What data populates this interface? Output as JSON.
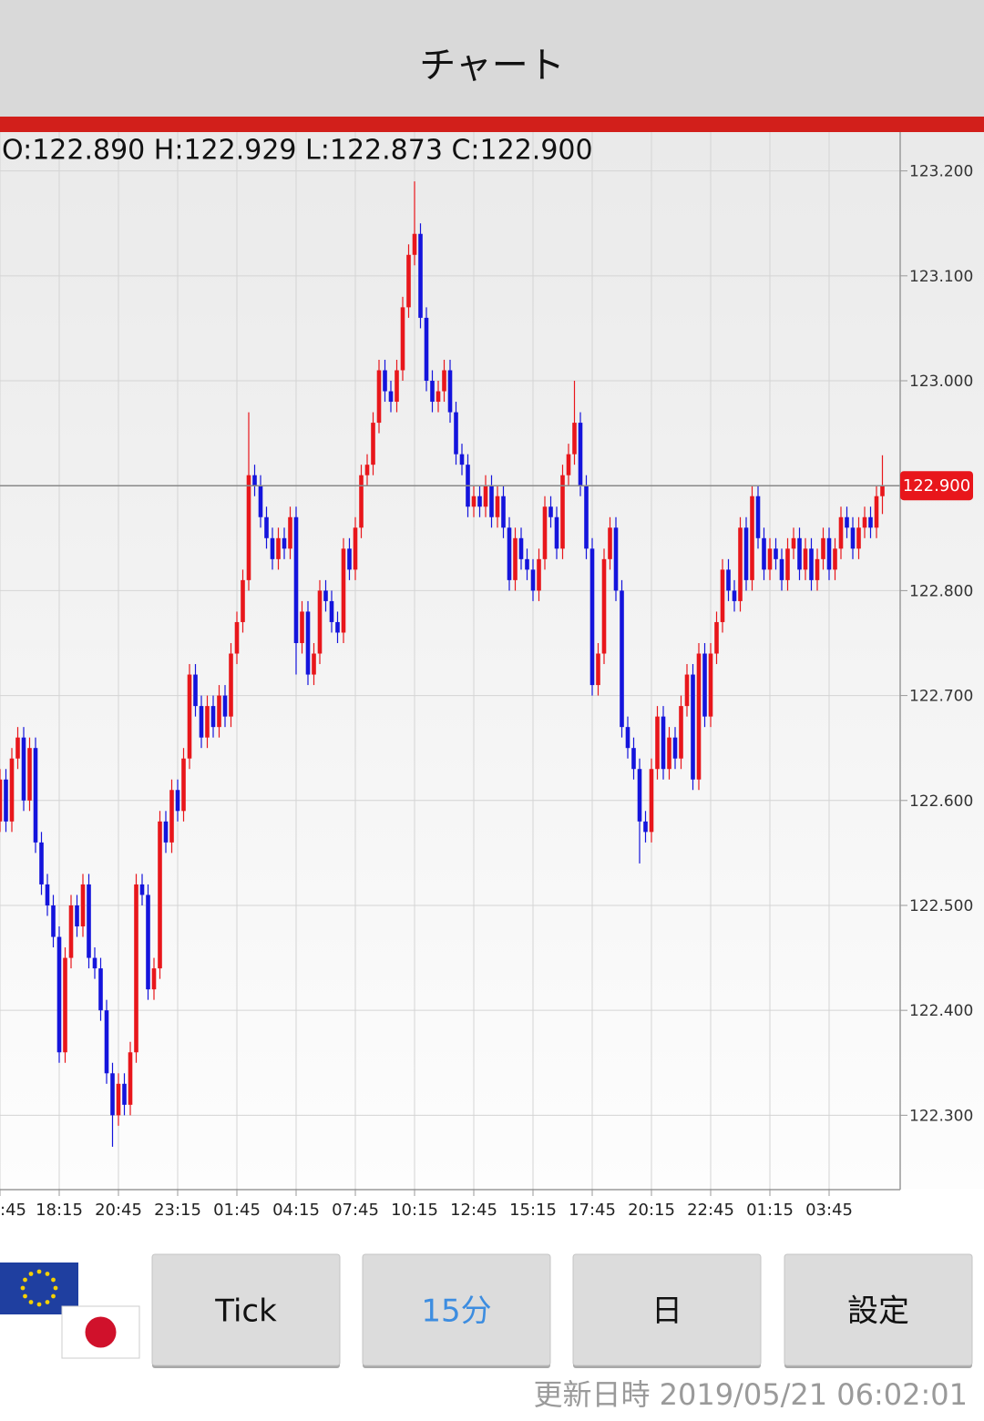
{
  "header": {
    "title": "チャート"
  },
  "chart_data": {
    "type": "candlestick",
    "ohlc_text": "O:122.890 H:122.929 L:122.873 C:122.900",
    "categories": [
      ":45",
      null,
      null,
      null,
      null,
      null,
      null,
      null,
      null,
      null,
      "18:15",
      null,
      null,
      null,
      null,
      null,
      null,
      null,
      null,
      null,
      "20:45",
      null,
      null,
      null,
      null,
      null,
      null,
      null,
      null,
      null,
      "23:15",
      null,
      null,
      null,
      null,
      null,
      null,
      null,
      null,
      null,
      "01:45",
      null,
      null,
      null,
      null,
      null,
      null,
      null,
      null,
      null,
      "04:15",
      null,
      null,
      null,
      null,
      null,
      null,
      null,
      null,
      null,
      "07:45",
      null,
      null,
      null,
      null,
      null,
      null,
      null,
      null,
      null,
      "10:15",
      null,
      null,
      null,
      null,
      null,
      null,
      null,
      null,
      null,
      "12:45",
      null,
      null,
      null,
      null,
      null,
      null,
      null,
      null,
      null,
      "15:15",
      null,
      null,
      null,
      null,
      null,
      null,
      null,
      null,
      null,
      "17:45",
      null,
      null,
      null,
      null,
      null,
      null,
      null,
      null,
      null,
      "20:15",
      null,
      null,
      null,
      null,
      null,
      null,
      null,
      null,
      null,
      "22:45",
      null,
      null,
      null,
      null,
      null,
      null,
      null,
      null,
      null,
      "01:15",
      null,
      null,
      null,
      null,
      null,
      null,
      null,
      null,
      null,
      "03:45",
      null,
      null,
      null,
      null,
      null,
      null,
      null,
      null,
      null
    ],
    "open": [
      122.58,
      122.62,
      122.58,
      122.64,
      122.66,
      122.6,
      122.65,
      122.56,
      122.52,
      122.5,
      122.47,
      122.36,
      122.45,
      122.5,
      122.48,
      122.52,
      122.45,
      122.44,
      122.4,
      122.34,
      122.3,
      122.33,
      122.31,
      122.36,
      122.52,
      122.51,
      122.42,
      122.44,
      122.58,
      122.56,
      122.61,
      122.59,
      122.64,
      122.72,
      122.69,
      122.66,
      122.69,
      122.67,
      122.7,
      122.68,
      122.74,
      122.77,
      122.81,
      122.91,
      122.9,
      122.87,
      122.85,
      122.83,
      122.85,
      122.84,
      122.87,
      122.75,
      122.78,
      122.72,
      122.74,
      122.8,
      122.79,
      122.77,
      122.76,
      122.84,
      122.82,
      122.86,
      122.91,
      122.92,
      122.96,
      123.01,
      122.99,
      122.98,
      123.01,
      123.07,
      123.12,
      123.14,
      123.06,
      123.0,
      122.98,
      122.99,
      123.01,
      122.97,
      122.93,
      122.92,
      122.88,
      122.89,
      122.88,
      122.9,
      122.87,
      122.89,
      122.86,
      122.81,
      122.85,
      122.83,
      122.82,
      122.8,
      122.83,
      122.88,
      122.87,
      122.84,
      122.91,
      122.93,
      122.96,
      122.9,
      122.84,
      122.71,
      122.74,
      122.83,
      122.86,
      122.8,
      122.67,
      122.65,
      122.63,
      122.58,
      122.57,
      122.63,
      122.68,
      122.63,
      122.66,
      122.64,
      122.69,
      122.72,
      122.62,
      122.74,
      122.68,
      122.74,
      122.77,
      122.82,
      122.8,
      122.79,
      122.86,
      122.81,
      122.89,
      122.85,
      122.82,
      122.84,
      122.83,
      122.81,
      122.84,
      122.85,
      122.82,
      122.84,
      122.81,
      122.83,
      122.85,
      122.82,
      122.84,
      122.87,
      122.86,
      122.84,
      122.86,
      122.87,
      122.86,
      122.89
    ],
    "high": [
      122.63,
      122.63,
      122.65,
      122.67,
      122.67,
      122.66,
      122.66,
      122.57,
      122.53,
      122.51,
      122.48,
      122.46,
      122.51,
      122.51,
      122.53,
      122.53,
      122.46,
      122.45,
      122.41,
      122.35,
      122.34,
      122.34,
      122.37,
      122.53,
      122.53,
      122.52,
      122.45,
      122.59,
      122.59,
      122.62,
      122.62,
      122.65,
      122.73,
      122.73,
      122.7,
      122.7,
      122.7,
      122.71,
      122.71,
      122.75,
      122.78,
      122.82,
      122.97,
      122.92,
      122.91,
      122.88,
      122.86,
      122.86,
      122.86,
      122.88,
      122.88,
      122.79,
      122.79,
      122.75,
      122.81,
      122.81,
      122.8,
      122.78,
      122.85,
      122.85,
      122.87,
      122.92,
      122.93,
      122.97,
      123.02,
      123.02,
      123.0,
      123.02,
      123.08,
      123.13,
      123.19,
      123.15,
      123.07,
      123.01,
      123.0,
      123.02,
      123.02,
      122.98,
      122.94,
      122.93,
      122.9,
      122.9,
      122.91,
      122.91,
      122.9,
      122.9,
      122.87,
      122.86,
      122.86,
      122.84,
      122.83,
      122.84,
      122.89,
      122.89,
      122.88,
      122.92,
      122.94,
      123.0,
      122.97,
      122.91,
      122.85,
      122.75,
      122.84,
      122.87,
      122.87,
      122.81,
      122.68,
      122.66,
      122.64,
      122.59,
      122.64,
      122.69,
      122.69,
      122.67,
      122.67,
      122.7,
      122.73,
      122.73,
      122.75,
      122.75,
      122.75,
      122.78,
      122.83,
      122.83,
      122.81,
      122.87,
      122.87,
      122.9,
      122.9,
      122.86,
      122.85,
      122.85,
      122.84,
      122.85,
      122.86,
      122.86,
      122.85,
      122.85,
      122.84,
      122.86,
      122.86,
      122.85,
      122.88,
      122.88,
      122.87,
      122.87,
      122.88,
      122.88,
      122.9,
      122.929
    ],
    "low": [
      122.57,
      122.57,
      122.57,
      122.63,
      122.59,
      122.59,
      122.55,
      122.51,
      122.49,
      122.46,
      122.35,
      122.35,
      122.44,
      122.47,
      122.47,
      122.44,
      122.43,
      122.39,
      122.33,
      122.27,
      122.29,
      122.3,
      122.3,
      122.35,
      122.5,
      122.41,
      122.41,
      122.43,
      122.55,
      122.55,
      122.58,
      122.58,
      122.63,
      122.68,
      122.65,
      122.65,
      122.66,
      122.66,
      122.67,
      122.67,
      122.73,
      122.76,
      122.8,
      122.89,
      122.86,
      122.84,
      122.82,
      122.82,
      122.83,
      122.83,
      122.72,
      122.74,
      122.71,
      122.71,
      122.73,
      122.78,
      122.76,
      122.75,
      122.75,
      122.81,
      122.81,
      122.85,
      122.9,
      122.91,
      122.95,
      122.98,
      122.97,
      122.97,
      123.0,
      123.06,
      123.11,
      123.05,
      122.99,
      122.97,
      122.97,
      122.98,
      122.96,
      122.92,
      122.91,
      122.87,
      122.87,
      122.87,
      122.87,
      122.86,
      122.86,
      122.85,
      122.8,
      122.8,
      122.82,
      122.81,
      122.79,
      122.79,
      122.82,
      122.86,
      122.83,
      122.83,
      122.9,
      122.92,
      122.89,
      122.83,
      122.7,
      122.7,
      122.73,
      122.82,
      122.79,
      122.66,
      122.64,
      122.62,
      122.54,
      122.56,
      122.56,
      122.62,
      122.62,
      122.62,
      122.63,
      122.63,
      122.68,
      122.61,
      122.61,
      122.67,
      122.67,
      122.73,
      122.76,
      122.79,
      122.78,
      122.78,
      122.8,
      122.8,
      122.84,
      122.81,
      122.81,
      122.82,
      122.8,
      122.8,
      122.83,
      122.81,
      122.81,
      122.8,
      122.8,
      122.82,
      122.81,
      122.81,
      122.83,
      122.85,
      122.83,
      122.83,
      122.85,
      122.85,
      122.85,
      122.873
    ],
    "close": [
      122.62,
      122.58,
      122.64,
      122.66,
      122.6,
      122.65,
      122.56,
      122.52,
      122.5,
      122.47,
      122.36,
      122.45,
      122.5,
      122.48,
      122.52,
      122.45,
      122.44,
      122.4,
      122.34,
      122.3,
      122.33,
      122.31,
      122.36,
      122.52,
      122.51,
      122.42,
      122.44,
      122.58,
      122.56,
      122.61,
      122.59,
      122.64,
      122.72,
      122.69,
      122.66,
      122.69,
      122.67,
      122.7,
      122.68,
      122.74,
      122.77,
      122.81,
      122.91,
      122.9,
      122.87,
      122.85,
      122.83,
      122.85,
      122.84,
      122.87,
      122.75,
      122.78,
      122.72,
      122.74,
      122.8,
      122.79,
      122.77,
      122.76,
      122.84,
      122.82,
      122.86,
      122.91,
      122.92,
      122.96,
      123.01,
      122.99,
      122.98,
      123.01,
      123.07,
      123.12,
      123.14,
      123.06,
      123.0,
      122.98,
      122.99,
      123.01,
      122.97,
      122.93,
      122.92,
      122.88,
      122.89,
      122.88,
      122.9,
      122.87,
      122.89,
      122.86,
      122.81,
      122.85,
      122.83,
      122.82,
      122.8,
      122.83,
      122.88,
      122.87,
      122.84,
      122.91,
      122.93,
      122.96,
      122.9,
      122.84,
      122.71,
      122.74,
      122.83,
      122.86,
      122.8,
      122.67,
      122.65,
      122.63,
      122.58,
      122.57,
      122.63,
      122.68,
      122.63,
      122.66,
      122.64,
      122.69,
      122.72,
      122.62,
      122.74,
      122.68,
      122.74,
      122.77,
      122.82,
      122.8,
      122.79,
      122.86,
      122.81,
      122.89,
      122.85,
      122.82,
      122.84,
      122.83,
      122.81,
      122.84,
      122.85,
      122.82,
      122.84,
      122.81,
      122.83,
      122.85,
      122.82,
      122.84,
      122.87,
      122.86,
      122.84,
      122.86,
      122.87,
      122.86,
      122.89,
      122.9
    ],
    "up_color": "#e8161b",
    "down_color": "#1414dc",
    "ylim": [
      122.23,
      123.237
    ],
    "yticks": [
      {
        "value": 122.3,
        "label": "122.300"
      },
      {
        "value": 122.4,
        "label": "122.400"
      },
      {
        "value": 122.5,
        "label": "122.500"
      },
      {
        "value": 122.6,
        "label": "122.600"
      },
      {
        "value": 122.7,
        "label": "122.700"
      },
      {
        "value": 122.8,
        "label": "122.800"
      },
      {
        "value": 122.9,
        "label": "122.900"
      },
      {
        "value": 123.0,
        "label": "123.000"
      },
      {
        "value": 123.1,
        "label": "123.100"
      },
      {
        "value": 123.2,
        "label": "123.200"
      }
    ],
    "current_price": {
      "value": 122.9,
      "label": "122.900"
    },
    "grid": true
  },
  "buttons": [
    {
      "label": "Tick",
      "selected": false
    },
    {
      "label": "15分",
      "selected": true
    },
    {
      "label": "日",
      "selected": false
    },
    {
      "label": "設定",
      "selected": false
    }
  ],
  "footer": {
    "updated": "更新日時 2019/05/21 06:02:01"
  }
}
